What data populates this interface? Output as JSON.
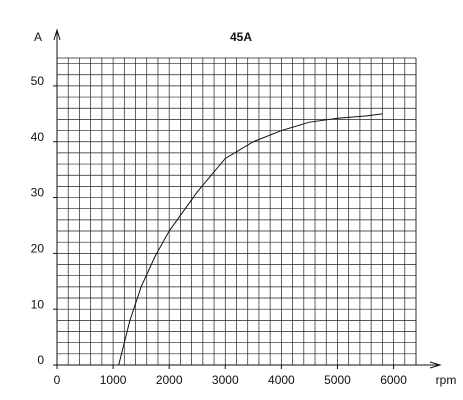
{
  "chart_data": {
    "type": "line",
    "title": "45A",
    "y_label": "A",
    "x_label": "rpm",
    "x": [
      1100,
      1300,
      1500,
      1750,
      2000,
      2500,
      3000,
      3500,
      4000,
      4500,
      5000,
      5500,
      5800
    ],
    "values": [
      0,
      8,
      14,
      19.5,
      24,
      31,
      37,
      40,
      42,
      43.5,
      44.2,
      44.6,
      45
    ],
    "color": "#111111",
    "xlim": [
      0,
      6400
    ],
    "xticks": [
      0,
      1000,
      2000,
      3000,
      4000,
      5000,
      6000
    ],
    "ylim": [
      0,
      55
    ],
    "yticks": [
      0,
      10,
      20,
      30,
      40,
      50
    ],
    "grid": true
  }
}
